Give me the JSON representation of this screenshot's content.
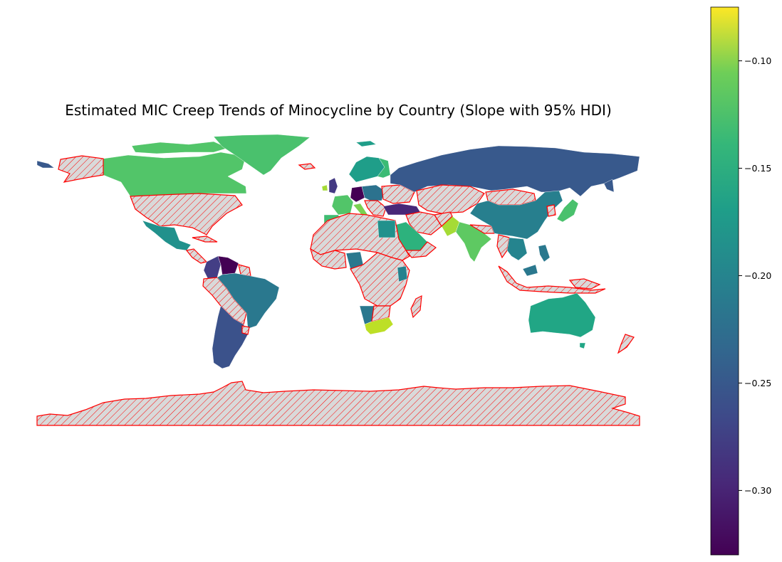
{
  "title": "Estimated MIC Creep Trends of Minocycline by Country (Slope with 95% HDI)",
  "missing_style": {
    "fill": "#d9d9d9",
    "edge": "#ff0000",
    "hatch": "////"
  },
  "chart_data": {
    "type": "choropleth",
    "title": "Estimated MIC Creep Trends of Minocycline by Country (Slope with 95% HDI)",
    "colormap": "viridis",
    "color_range": [
      -0.33,
      -0.075
    ],
    "colorbar_ticks": [
      -0.1,
      -0.15,
      -0.2,
      -0.25,
      -0.3
    ],
    "colorbar_tick_labels": [
      "−0.10",
      "−0.15",
      "−0.20",
      "−0.25",
      "−0.30"
    ],
    "regions": [
      {
        "name": "Canada",
        "value": -0.145
      },
      {
        "name": "Greenland",
        "value": -0.15
      },
      {
        "name": "Russia",
        "value": -0.25
      },
      {
        "name": "China",
        "value": -0.215
      },
      {
        "name": "Japan",
        "value": -0.14
      },
      {
        "name": "Mexico",
        "value": -0.19
      },
      {
        "name": "Brazil",
        "value": -0.22
      },
      {
        "name": "Argentina",
        "value": -0.25
      },
      {
        "name": "Venezuela",
        "value": -0.32
      },
      {
        "name": "Colombia",
        "value": -0.28
      },
      {
        "name": "Australia",
        "value": -0.18
      },
      {
        "name": "India",
        "value": -0.14
      },
      {
        "name": "Pakistan",
        "value": -0.11
      },
      {
        "name": "Saudi Arabia",
        "value": -0.17
      },
      {
        "name": "South Africa",
        "value": -0.09
      },
      {
        "name": "Turkey",
        "value": -0.3
      },
      {
        "name": "Germany",
        "value": -0.32
      },
      {
        "name": "United Kingdom",
        "value": -0.28
      },
      {
        "name": "France",
        "value": -0.14
      },
      {
        "name": "Spain",
        "value": -0.15
      },
      {
        "name": "Italy",
        "value": -0.13
      },
      {
        "name": "Sweden",
        "value": -0.18
      },
      {
        "name": "Finland",
        "value": -0.16
      },
      {
        "name": "Norway",
        "value": -0.19
      },
      {
        "name": "Thailand",
        "value": -0.2
      },
      {
        "name": "Philippines",
        "value": -0.21
      },
      {
        "name": "Namibia",
        "value": -0.21
      },
      {
        "name": "Nigeria",
        "value": -0.21
      }
    ]
  }
}
